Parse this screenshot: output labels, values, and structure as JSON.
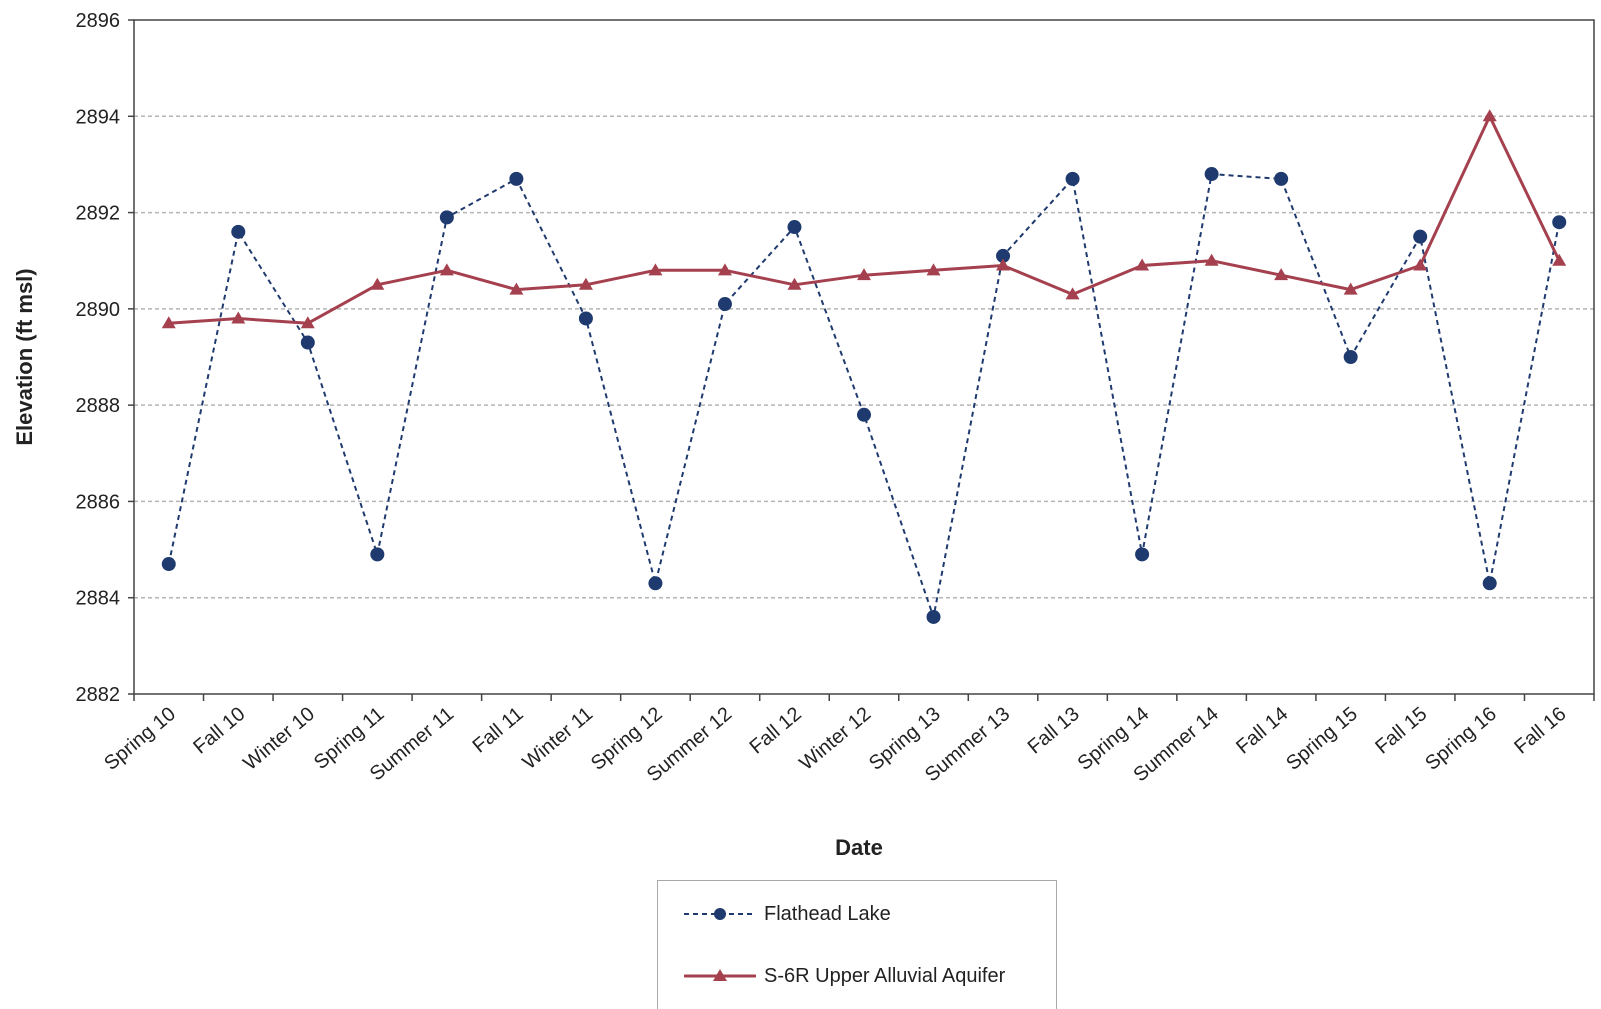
{
  "chart_data": {
    "type": "line",
    "title": "",
    "xlabel": "Date",
    "ylabel": "Elevation (ft msl)",
    "ylim": [
      2882,
      2896
    ],
    "yticks": [
      2882,
      2884,
      2886,
      2888,
      2890,
      2892,
      2894,
      2896
    ],
    "grid": "horizontal dashed",
    "legend_position": "bottom-center",
    "categories": [
      "Spring 10",
      "Fall 10",
      "Winter 10",
      "Spring 11",
      "Summer 11",
      "Fall 11",
      "Winter 11",
      "Spring 12",
      "Summer 12",
      "Fall 12",
      "Winter 12",
      "Spring 13",
      "Summer 13",
      "Fall 13",
      "Spring 14",
      "Summer 14",
      "Fall 14",
      "Spring 15",
      "Fall 15",
      "Spring 16",
      "Fall 16"
    ],
    "series": [
      {
        "name": "Flathead Lake",
        "color": "#1f3a6e",
        "line_style": "dashed",
        "marker": "circle",
        "values": [
          2884.7,
          2891.6,
          2889.3,
          2884.9,
          2891.9,
          2892.7,
          2889.8,
          2884.3,
          2890.1,
          2891.7,
          2887.8,
          2883.6,
          2891.1,
          2892.7,
          2884.9,
          2892.8,
          2892.7,
          2889.0,
          2891.5,
          2884.3,
          2891.8
        ]
      },
      {
        "name": "S-6R Upper Alluvial Aquifer",
        "color": "#a5404f",
        "line_style": "solid",
        "marker": "triangle",
        "values": [
          2889.7,
          2889.8,
          2889.7,
          2890.5,
          2890.8,
          2890.4,
          2890.5,
          2890.8,
          2890.8,
          2890.5,
          2890.7,
          2890.8,
          2890.9,
          2890.3,
          2890.9,
          2891.0,
          2890.7,
          2890.4,
          2890.9,
          2894.0,
          2891.0
        ]
      }
    ]
  }
}
